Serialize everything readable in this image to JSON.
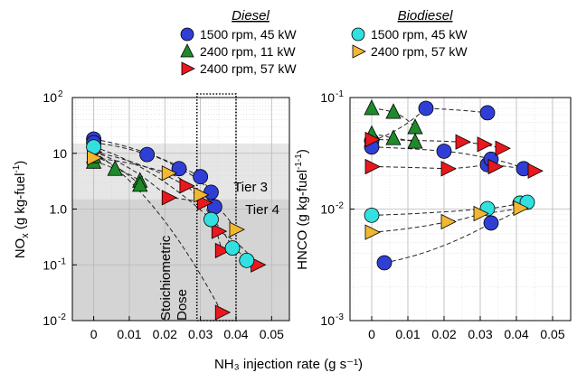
{
  "chart_data": [
    {
      "type": "scatter",
      "panel": "left",
      "xlabel": "NH₃ injection rate (g s⁻¹)",
      "ylabel_main": "NO",
      "ylabel_sub": "x",
      "ylabel_tail": " (g kg-fuel",
      "ylabel_sup": "-1",
      "ylabel_end": ")",
      "xlim": [
        -0.006,
        0.055
      ],
      "ylim": [
        0.01,
        100
      ],
      "yscale": "log",
      "xticks": [
        "0",
        "0.01",
        "0.02",
        "0.03",
        "0.04",
        "0.05"
      ],
      "yticks": [
        {
          "base": "10",
          "exp": "-2"
        },
        {
          "base": "10",
          "exp": "-1"
        },
        {
          "base": "1.0",
          "exp": ""
        },
        {
          "base": "10",
          "exp": ""
        },
        {
          "base": "10",
          "exp": "2"
        }
      ],
      "bands": [
        {
          "name": "Tier 3",
          "from": 1.5,
          "to": 15,
          "color": "#e6e6e6"
        },
        {
          "name": "Tier 4",
          "from": 0.01,
          "to": 1.5,
          "color": "#d4d4d4"
        }
      ],
      "annotations": [
        "Tier 3",
        "Tier 4",
        "Stoichiometric",
        "Dose"
      ],
      "stoich_box": [
        0.029,
        0.04
      ],
      "series": [
        {
          "name": "Diesel 1500 rpm, 45 kW",
          "marker": "circle",
          "color": "#2f3fd6",
          "points": [
            [
              0.0,
              18
            ],
            [
              0.0,
              15.5
            ],
            [
              0.015,
              9.5
            ],
            [
              0.024,
              5.3
            ],
            [
              0.03,
              3.8
            ],
            [
              0.033,
              2.0
            ],
            [
              0.034,
              1.1
            ]
          ]
        },
        {
          "name": "Diesel 2400 rpm, 11 kW",
          "marker": "triangle-up",
          "color": "#1e8a2b",
          "points": [
            [
              0.0,
              7
            ],
            [
              0.0,
              8.8
            ],
            [
              0.006,
              5.2
            ],
            [
              0.013,
              3.2
            ],
            [
              0.013,
              2.7
            ]
          ]
        },
        {
          "name": "Diesel 2400 rpm, 57 kW",
          "marker": "triangle-right",
          "color": "#e8181e",
          "points": [
            [
              0.0,
              10.5
            ],
            [
              0.021,
              1.6
            ],
            [
              0.026,
              2.6
            ],
            [
              0.031,
              1.3
            ],
            [
              0.035,
              0.4
            ],
            [
              0.036,
              0.18
            ],
            [
              0.036,
              0.014
            ],
            [
              0.046,
              0.1
            ]
          ]
        },
        {
          "name": "Biodiesel 1500 rpm, 45 kW",
          "marker": "circle",
          "color": "#33e0e0",
          "points": [
            [
              0.0,
              13
            ],
            [
              0.033,
              0.65
            ],
            [
              0.039,
              0.2
            ],
            [
              0.043,
              0.12
            ]
          ]
        },
        {
          "name": "Biodiesel 2400 rpm, 57 kW",
          "marker": "triangle-right",
          "color": "#f2b731",
          "points": [
            [
              0.0,
              8.3
            ],
            [
              0.021,
              4.4
            ],
            [
              0.03,
              1.8
            ],
            [
              0.04,
              0.43
            ]
          ]
        }
      ],
      "dashed_curves": [
        [
          [
            0.0,
            18
          ],
          [
            0.03,
            3.8
          ],
          [
            0.034,
            1.1
          ]
        ],
        [
          [
            0.0,
            15.5
          ],
          [
            0.015,
            9.5
          ],
          [
            0.024,
            5.3
          ],
          [
            0.033,
            2.0
          ]
        ],
        [
          [
            0.0,
            7
          ],
          [
            0.006,
            5.2
          ],
          [
            0.013,
            3.2
          ]
        ],
        [
          [
            0.0,
            8.8
          ],
          [
            0.013,
            2.7
          ]
        ],
        [
          [
            0.0,
            10.5
          ],
          [
            0.026,
            2.6
          ],
          [
            0.035,
            0.4
          ],
          [
            0.046,
            0.1
          ]
        ],
        [
          [
            0.0,
            10.5
          ],
          [
            0.021,
            1.6
          ],
          [
            0.031,
            1.3
          ],
          [
            0.036,
            0.18
          ]
        ],
        [
          [
            0.0,
            10.5
          ],
          [
            0.036,
            0.014
          ]
        ],
        [
          [
            0.0,
            13
          ],
          [
            0.033,
            0.65
          ],
          [
            0.039,
            0.2
          ],
          [
            0.043,
            0.12
          ]
        ],
        [
          [
            0.0,
            8.3
          ],
          [
            0.021,
            4.4
          ],
          [
            0.03,
            1.8
          ],
          [
            0.04,
            0.43
          ]
        ]
      ]
    },
    {
      "type": "scatter",
      "panel": "right",
      "ylabel_main": "HNCO (g kg-fuel",
      "ylabel_sup": "-1-1",
      "ylabel_end": ")",
      "xlim": [
        -0.006,
        0.055
      ],
      "ylim": [
        0.001,
        0.1
      ],
      "yscale": "log",
      "xticks": [
        "0",
        "0.01",
        "0.02",
        "0.03",
        "0.04",
        "0.05"
      ],
      "yticks": [
        {
          "base": "10",
          "exp": "-3"
        },
        {
          "base": "10",
          "exp": "-2"
        },
        {
          "base": "10",
          "exp": "-1"
        }
      ],
      "series": [
        {
          "name": "Diesel 1500 rpm, 45 kW",
          "marker": "circle",
          "color": "#2f3fd6",
          "points": [
            [
              0.0,
              0.041
            ],
            [
              0.0,
              0.036
            ],
            [
              0.0035,
              0.0033
            ],
            [
              0.015,
              0.08
            ],
            [
              0.02,
              0.033
            ],
            [
              0.032,
              0.073
            ],
            [
              0.032,
              0.025
            ],
            [
              0.033,
              0.028
            ],
            [
              0.033,
              0.0075
            ],
            [
              0.042,
              0.023
            ]
          ]
        },
        {
          "name": "Diesel 2400 rpm, 11 kW",
          "marker": "triangle-up",
          "color": "#1e8a2b",
          "points": [
            [
              0.0,
              0.08
            ],
            [
              0.0,
              0.047
            ],
            [
              0.006,
              0.074
            ],
            [
              0.006,
              0.043
            ],
            [
              0.012,
              0.054
            ],
            [
              0.012,
              0.04
            ]
          ]
        },
        {
          "name": "Diesel 2400 rpm, 57 kW",
          "marker": "triangle-right",
          "color": "#e8181e",
          "points": [
            [
              0.0,
              0.042
            ],
            [
              0.0,
              0.024
            ],
            [
              0.021,
              0.023
            ],
            [
              0.025,
              0.04
            ],
            [
              0.031,
              0.038
            ],
            [
              0.034,
              0.024
            ],
            [
              0.036,
              0.035
            ],
            [
              0.045,
              0.022
            ]
          ]
        },
        {
          "name": "Biodiesel 1500 rpm, 45 kW",
          "marker": "circle",
          "color": "#33e0e0",
          "points": [
            [
              0.0,
              0.0088
            ],
            [
              0.032,
              0.0101
            ],
            [
              0.041,
              0.0113
            ],
            [
              0.043,
              0.0115
            ]
          ]
        },
        {
          "name": "Biodiesel 2400 rpm, 57 kW",
          "marker": "triangle-right",
          "color": "#f2b731",
          "points": [
            [
              0.0,
              0.0062
            ],
            [
              0.021,
              0.0077
            ],
            [
              0.03,
              0.0091
            ],
            [
              0.041,
              0.0102
            ]
          ]
        }
      ],
      "dashed_curves": [
        [
          [
            0.0,
            0.041
          ],
          [
            0.015,
            0.08
          ],
          [
            0.032,
            0.073
          ]
        ],
        [
          [
            0.0,
            0.036
          ],
          [
            0.02,
            0.033
          ],
          [
            0.033,
            0.028
          ],
          [
            0.042,
            0.023
          ]
        ],
        [
          [
            0.0035,
            0.0033
          ],
          [
            0.033,
            0.0075
          ],
          [
            0.043,
            0.0115
          ]
        ],
        [
          [
            0.0,
            0.08
          ],
          [
            0.006,
            0.074
          ],
          [
            0.012,
            0.054
          ]
        ],
        [
          [
            0.0,
            0.047
          ],
          [
            0.006,
            0.043
          ],
          [
            0.012,
            0.04
          ]
        ],
        [
          [
            0.0,
            0.042
          ],
          [
            0.025,
            0.04
          ],
          [
            0.036,
            0.035
          ]
        ],
        [
          [
            0.0,
            0.024
          ],
          [
            0.021,
            0.023
          ],
          [
            0.032,
            0.025
          ],
          [
            0.045,
            0.022
          ]
        ],
        [
          [
            0.0,
            0.0088
          ],
          [
            0.032,
            0.0101
          ],
          [
            0.041,
            0.0113
          ]
        ],
        [
          [
            0.0,
            0.0062
          ],
          [
            0.021,
            0.0077
          ],
          [
            0.03,
            0.0091
          ],
          [
            0.041,
            0.0102
          ]
        ]
      ]
    }
  ],
  "legend": {
    "diesel_title": "Diesel",
    "biodiesel_title": "Biodiesel",
    "diesel_items": [
      {
        "label": "1500 rpm, 45 kW",
        "marker": "circle",
        "color": "#2f3fd6"
      },
      {
        "label": "2400 rpm, 11 kW",
        "marker": "triangle-up",
        "color": "#1e8a2b"
      },
      {
        "label": "2400 rpm, 57 kW",
        "marker": "triangle-right",
        "color": "#e8181e"
      }
    ],
    "biodiesel_items": [
      {
        "label": "1500 rpm, 45 kW",
        "marker": "circle",
        "color": "#33e0e0"
      },
      {
        "label": "2400 rpm, 57 kW",
        "marker": "triangle-right",
        "color": "#f2b731"
      }
    ]
  }
}
